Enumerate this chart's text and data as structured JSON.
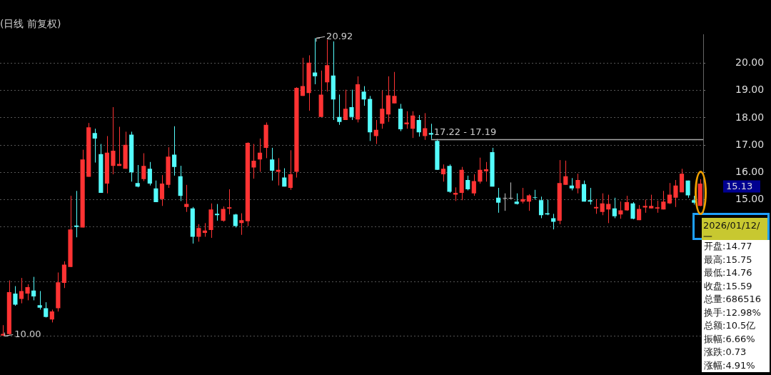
{
  "chart_data": {
    "type": "candlestick",
    "title": "(日线 前复权)",
    "categories": [
      null,
      null,
      null,
      null,
      null,
      null,
      null,
      null,
      null,
      null,
      null,
      null,
      null,
      null,
      null,
      null,
      null,
      null,
      null,
      null,
      null,
      null,
      null,
      null,
      null,
      null,
      null,
      null,
      null,
      null,
      null,
      null,
      null,
      null,
      null,
      null,
      null,
      null,
      null,
      null,
      null,
      null,
      null,
      null,
      null,
      null,
      null,
      null,
      null,
      null,
      null,
      null,
      null,
      null,
      null,
      null,
      null,
      null,
      null,
      null,
      null,
      null,
      null,
      null,
      null,
      null,
      null,
      null,
      null,
      null,
      null,
      null,
      null,
      null,
      null,
      null,
      null,
      null,
      null,
      null,
      null,
      null,
      null,
      null,
      null,
      null,
      null,
      null,
      null,
      null,
      null,
      null,
      null,
      null,
      null,
      null,
      null,
      null,
      null,
      null,
      null,
      null,
      null,
      null,
      null,
      null,
      null,
      null,
      null,
      null,
      null,
      null,
      null,
      null,
      null
    ],
    "ohlc": [
      [
        10.02,
        10.4,
        10.0,
        10.08
      ],
      [
        10.07,
        12.04,
        10.05,
        11.61
      ],
      [
        11.56,
        11.83,
        11.11,
        11.15
      ],
      [
        11.36,
        12.13,
        11.2,
        11.65
      ],
      [
        11.56,
        11.9,
        11.31,
        11.79
      ],
      [
        11.67,
        12.17,
        11.31,
        11.45
      ],
      [
        11.13,
        11.65,
        10.97,
        11.04
      ],
      [
        11.02,
        11.24,
        10.68,
        10.7
      ],
      [
        10.61,
        10.97,
        10.5,
        10.9
      ],
      [
        11.02,
        12.33,
        10.9,
        11.97
      ],
      [
        11.95,
        12.74,
        11.76,
        12.62
      ],
      [
        12.53,
        15.14,
        12.53,
        13.91
      ],
      [
        14.05,
        15.32,
        13.62,
        14.0
      ],
      [
        13.98,
        16.83,
        13.98,
        16.47
      ],
      [
        15.84,
        17.81,
        15.84,
        17.65
      ],
      [
        17.44,
        17.6,
        16.36,
        17.24
      ],
      [
        16.67,
        17.04,
        15.25,
        15.25
      ],
      [
        15.59,
        17.33,
        15.23,
        16.72
      ],
      [
        16.24,
        18.39,
        15.93,
        16.79
      ],
      [
        16.24,
        17.67,
        16.24,
        16.31
      ],
      [
        16.13,
        17.49,
        16.13,
        17.01
      ],
      [
        17.38,
        17.49,
        15.66,
        16.0
      ],
      [
        15.61,
        16.27,
        15.45,
        15.48
      ],
      [
        15.75,
        16.7,
        15.68,
        16.24
      ],
      [
        16.13,
        16.38,
        15.52,
        15.59
      ],
      [
        15.41,
        15.7,
        14.91,
        14.91
      ],
      [
        15.02,
        15.9,
        14.77,
        15.59
      ],
      [
        15.54,
        16.92,
        15.43,
        16.58
      ],
      [
        16.65,
        17.69,
        15.88,
        16.2
      ],
      [
        15.86,
        16.24,
        14.95,
        15.14
      ],
      [
        14.73,
        15.54,
        14.55,
        14.84
      ],
      [
        14.68,
        14.73,
        13.39,
        13.64
      ],
      [
        13.64,
        14.1,
        13.46,
        13.96
      ],
      [
        13.78,
        14.14,
        13.64,
        13.87
      ],
      [
        13.89,
        14.86,
        13.6,
        14.64
      ],
      [
        14.48,
        14.84,
        14.23,
        14.43
      ],
      [
        14.23,
        14.75,
        14.19,
        14.66
      ],
      [
        14.67,
        15.38,
        14.46,
        14.72
      ],
      [
        14.46,
        14.48,
        13.98,
        14.03
      ],
      [
        14.14,
        14.5,
        13.71,
        14.25
      ],
      [
        14.21,
        17.1,
        14.03,
        17.08
      ],
      [
        16.18,
        17.04,
        15.77,
        16.43
      ],
      [
        16.47,
        17.24,
        16.02,
        16.72
      ],
      [
        16.9,
        17.83,
        16.52,
        17.74
      ],
      [
        16.47,
        16.9,
        15.7,
        16.06
      ],
      [
        16.02,
        16.52,
        15.52,
        16.09
      ],
      [
        15.81,
        16.15,
        15.48,
        15.48
      ],
      [
        15.43,
        16.81,
        15.36,
        15.93
      ],
      [
        16.02,
        19.12,
        15.81,
        19.1
      ],
      [
        18.8,
        20.2,
        18.8,
        19.16
      ],
      [
        18.91,
        20.29,
        18.26,
        20.02
      ],
      [
        19.66,
        20.92,
        19.23,
        19.52
      ],
      [
        18.03,
        19.73,
        18.03,
        18.85
      ],
      [
        19.3,
        20.86,
        18.96,
        19.93
      ],
      [
        19.55,
        20.8,
        17.92,
        18.67
      ],
      [
        18.03,
        18.85,
        17.74,
        17.85
      ],
      [
        17.92,
        19.03,
        17.92,
        18.33
      ],
      [
        18.39,
        19.03,
        17.92,
        18.03
      ],
      [
        17.94,
        19.52,
        17.83,
        19.23
      ],
      [
        18.96,
        19.16,
        18.44,
        18.67
      ],
      [
        18.69,
        18.8,
        17.15,
        17.47
      ],
      [
        17.33,
        17.92,
        17.04,
        17.56
      ],
      [
        17.78,
        19.0,
        17.6,
        18.33
      ],
      [
        18.12,
        19.52,
        17.85,
        18.82
      ],
      [
        18.53,
        19.68,
        18.53,
        18.8
      ],
      [
        18.33,
        18.51,
        17.51,
        17.58
      ],
      [
        17.76,
        18.24,
        17.6,
        17.83
      ],
      [
        17.6,
        18.24,
        17.26,
        18.08
      ],
      [
        17.92,
        18.1,
        17.31,
        17.47
      ],
      [
        17.33,
        18.17,
        17.19,
        17.62
      ],
      [
        17.44,
        17.78,
        17.22,
        17.38
      ],
      [
        17.15,
        17.22,
        16.09,
        16.09
      ],
      [
        15.93,
        16.29,
        15.66,
        16.13
      ],
      [
        16.24,
        16.29,
        15.25,
        15.29
      ],
      [
        15.18,
        15.45,
        14.95,
        15.25
      ],
      [
        15.25,
        16.2,
        14.98,
        16.09
      ],
      [
        15.72,
        15.88,
        15.34,
        15.38
      ],
      [
        15.23,
        15.93,
        15.14,
        15.68
      ],
      [
        15.66,
        16.54,
        15.59,
        16.09
      ],
      [
        16.04,
        16.38,
        15.66,
        16.11
      ],
      [
        16.74,
        16.9,
        15.48,
        15.48
      ],
      [
        15.07,
        15.43,
        14.52,
        14.89
      ],
      [
        15.07,
        15.23,
        14.59,
        15.07
      ],
      [
        15.07,
        15.63,
        15.02,
        15.07
      ],
      [
        14.93,
        15.23,
        14.82,
        14.84
      ],
      [
        14.93,
        15.43,
        14.86,
        15.02
      ],
      [
        14.93,
        15.2,
        14.59,
        15.16
      ],
      [
        15.09,
        15.36,
        15.0,
        15.07
      ],
      [
        14.98,
        15.11,
        14.32,
        14.43
      ],
      [
        14.5,
        15.0,
        14.43,
        14.46
      ],
      [
        14.32,
        14.48,
        13.91,
        14.19
      ],
      [
        14.23,
        16.45,
        14.1,
        15.61
      ],
      [
        15.54,
        16.43,
        15.54,
        15.86
      ],
      [
        15.52,
        15.79,
        15.34,
        15.41
      ],
      [
        15.41,
        15.95,
        15.23,
        15.72
      ],
      [
        15.57,
        15.7,
        14.93,
        14.93
      ],
      [
        14.98,
        15.43,
        14.82,
        14.93
      ],
      [
        14.68,
        15.02,
        14.48,
        14.73
      ],
      [
        14.55,
        15.23,
        14.43,
        14.86
      ],
      [
        14.64,
        15.18,
        14.14,
        14.84
      ],
      [
        14.68,
        15.07,
        14.32,
        14.39
      ],
      [
        14.46,
        14.93,
        14.3,
        14.61
      ],
      [
        14.61,
        15.14,
        14.59,
        14.91
      ],
      [
        14.86,
        14.91,
        14.28,
        14.3
      ],
      [
        14.25,
        14.8,
        14.25,
        14.66
      ],
      [
        14.71,
        15.0,
        14.52,
        14.77
      ],
      [
        14.68,
        15.18,
        14.68,
        14.77
      ],
      [
        14.67,
        14.96,
        14.52,
        14.72
      ],
      [
        14.64,
        15.32,
        14.64,
        14.93
      ],
      [
        14.86,
        15.61,
        14.84,
        15.18
      ],
      [
        15.07,
        15.72,
        14.73,
        15.52
      ],
      [
        15.27,
        16.13,
        15.27,
        15.95
      ],
      [
        15.7,
        15.7,
        15.07,
        15.16
      ],
      [
        14.98,
        15.14,
        14.82,
        14.89
      ],
      [
        14.77,
        15.75,
        14.76,
        15.59
      ]
    ],
    "colors": [
      "#ff3333",
      "#ff3333",
      "#54fcfc",
      "#ff3333",
      "#ff3333",
      "#54fcfc",
      "#54fcfc",
      "#54fcfc",
      "#ff3333",
      "#ff3333",
      "#ff3333",
      "#ff3333",
      "#54fcfc",
      "#ff3333",
      "#ff3333",
      "#54fcfc",
      "#54fcfc",
      "#ff3333",
      "#ff3333",
      "#ff3333",
      "#ff3333",
      "#54fcfc",
      "#54fcfc",
      "#ff3333",
      "#54fcfc",
      "#54fcfc",
      "#ff3333",
      "#ff3333",
      "#54fcfc",
      "#54fcfc",
      "#ff3333",
      "#54fcfc",
      "#ff3333",
      "#ff3333",
      "#ff3333",
      "#54fcfc",
      "#ff3333",
      "#ff3333",
      "#54fcfc",
      "#ff3333",
      "#ff3333",
      "#ff3333",
      "#ff3333",
      "#ff3333",
      "#54fcfc",
      "#ff3333",
      "#54fcfc",
      "#ff3333",
      "#ff3333",
      "#ff3333",
      "#ff3333",
      "#54fcfc",
      "#ff3333",
      "#ff3333",
      "#54fcfc",
      "#54fcfc",
      "#ff3333",
      "#54fcfc",
      "#ff3333",
      "#54fcfc",
      "#54fcfc",
      "#ff3333",
      "#ff3333",
      "#ff3333",
      "#ff3333",
      "#54fcfc",
      "#ff3333",
      "#ff3333",
      "#54fcfc",
      "#ff3333",
      "#54fcfc",
      "#54fcfc",
      "#ff3333",
      "#54fcfc",
      "#ff3333",
      "#ff3333",
      "#54fcfc",
      "#ff3333",
      "#ff3333",
      "#ff3333",
      "#54fcfc",
      "#54fcfc",
      "#c0c0c0",
      "#c0c0c0",
      "#54fcfc",
      "#ff3333",
      "#ff3333",
      "#54fcfc",
      "#54fcfc",
      "#54fcfc",
      "#54fcfc",
      "#ff3333",
      "#ff3333",
      "#54fcfc",
      "#ff3333",
      "#54fcfc",
      "#54fcfc",
      "#ff3333",
      "#ff3333",
      "#ff3333",
      "#54fcfc",
      "#ff3333",
      "#ff3333",
      "#54fcfc",
      "#ff3333",
      "#ff3333",
      "#ff3333",
      "#ff3333",
      "#ff3333",
      "#ff3333",
      "#ff3333",
      "#ff3333",
      "#54fcfc",
      "#54fcfc",
      "#ff3333"
    ],
    "ylim": [
      9.84,
      21.05
    ],
    "yticks": [
      {
        "value": 10,
        "label": null
      },
      {
        "value": 12,
        "label": null
      },
      {
        "value": 14,
        "label": null
      },
      {
        "value": 15,
        "label": "15.00"
      },
      {
        "value": 16,
        "label": "16.00"
      },
      {
        "value": 17,
        "label": "17.00"
      },
      {
        "value": 18,
        "label": "18.00"
      },
      {
        "value": 19,
        "label": "19.00"
      },
      {
        "value": 20,
        "label": "20.00"
      }
    ],
    "grid": "y",
    "tick_labels": "y",
    "legend": false,
    "ref_lines": [
      {
        "axis": "y",
        "value": 17.22,
        "label": "17.22 - 17.19",
        "color": "#aaaaaa"
      }
    ],
    "annotations": [
      "2026/01/12/一",
      "开盘:14.77",
      "最高:15.75",
      "最低:14.76",
      "收盘:15.59",
      "总量:686516",
      "换手:12.98%",
      "总额:10.5亿",
      "振幅:6.66%",
      "涨跌:0.73",
      "涨幅:4.91%",
      "20.92",
      "10.00",
      "15.13"
    ]
  }
}
